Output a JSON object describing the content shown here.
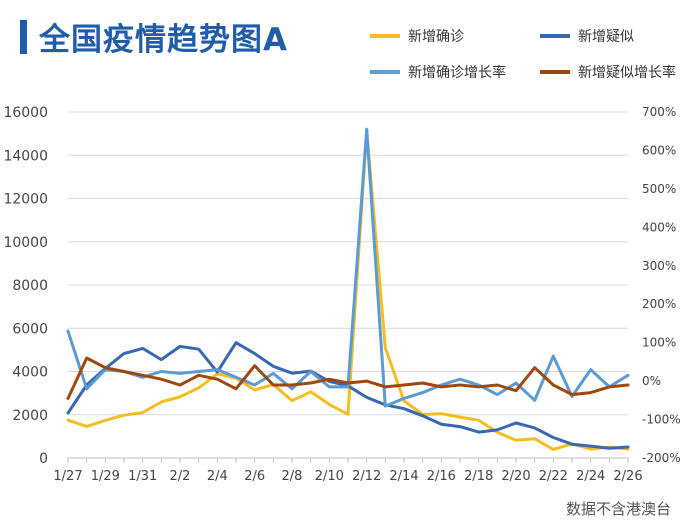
{
  "title": "全国疫情趋势图A",
  "source": "数据不含港澳台",
  "colors": {
    "title": "#1f5da8",
    "confirmed": "#f5bd1f",
    "suspected": "#3a67b1",
    "confirmed_rate": "#5b9bd5",
    "suspected_rate": "#9e480e"
  },
  "chart_data": {
    "type": "line",
    "title": "全国疫情趋势图A",
    "x": [
      "1/27",
      "1/28",
      "1/29",
      "1/30",
      "1/31",
      "2/1",
      "2/2",
      "2/3",
      "2/4",
      "2/5",
      "2/6",
      "2/7",
      "2/8",
      "2/9",
      "2/10",
      "2/11",
      "2/12",
      "2/13",
      "2/14",
      "2/15",
      "2/16",
      "2/17",
      "2/18",
      "2/19",
      "2/20",
      "2/21",
      "2/22",
      "2/23",
      "2/24",
      "2/25",
      "2/26"
    ],
    "x_tick_labels": [
      "1/27",
      "1/29",
      "1/31",
      "2/2",
      "2/4",
      "2/6",
      "2/8",
      "2/10",
      "2/12",
      "2/14",
      "2/16",
      "2/18",
      "2/20",
      "2/22",
      "2/24",
      "2/26"
    ],
    "y_left": {
      "range": [
        0,
        16000
      ],
      "ticks": [
        "0",
        "2000",
        "4000",
        "6000",
        "8000",
        "10000",
        "12000",
        "14000",
        "16000"
      ]
    },
    "y_right": {
      "range": [
        -200,
        700
      ],
      "unit": "%",
      "ticks": [
        "-200%",
        "-100%",
        "0%",
        "100%",
        "200%",
        "300%",
        "400%",
        "500%",
        "600%",
        "700%"
      ]
    },
    "grid": "horizontal",
    "legend": "top-right",
    "series": [
      {
        "name": "新增确诊",
        "axis": "left",
        "color": "#f5bd1f",
        "values": [
          1750,
          1460,
          1740,
          1980,
          2100,
          2590,
          2830,
          3240,
          3890,
          3700,
          3150,
          3400,
          2650,
          3060,
          2480,
          2020,
          15150,
          5100,
          2640,
          2010,
          2050,
          1890,
          1750,
          1190,
          820,
          890,
          400,
          650,
          410,
          510,
          410
        ]
      },
      {
        "name": "新增疑似",
        "axis": "left",
        "color": "#3a67b1",
        "values": [
          2080,
          3380,
          4140,
          4830,
          5070,
          4550,
          5160,
          5030,
          3970,
          5330,
          4830,
          4240,
          3920,
          4020,
          3540,
          3340,
          2800,
          2460,
          2280,
          1950,
          1560,
          1450,
          1200,
          1300,
          1620,
          1390,
          950,
          640,
          550,
          450,
          510
        ]
      },
      {
        "name": "新增确诊增长率",
        "axis": "right",
        "color": "#5b9bd5",
        "values": [
          130,
          -20,
          30,
          25,
          10,
          25,
          20,
          25,
          30,
          10,
          -10,
          20,
          -20,
          25,
          -15,
          -15,
          655,
          -65,
          -45,
          -30,
          -10,
          5,
          -10,
          -35,
          -5,
          -50,
          65,
          -40,
          30,
          -15,
          15
        ]
      },
      {
        "name": "新增疑似增长率",
        "axis": "right",
        "color": "#9e480e",
        "values": [
          -45,
          60,
          35,
          25,
          15,
          5,
          -10,
          15,
          5,
          -20,
          40,
          -10,
          -10,
          -5,
          5,
          -5,
          0,
          -15,
          -10,
          -5,
          -15,
          -10,
          -15,
          -10,
          -25,
          35,
          -10,
          -35,
          -30,
          -15,
          -10
        ]
      }
    ]
  }
}
